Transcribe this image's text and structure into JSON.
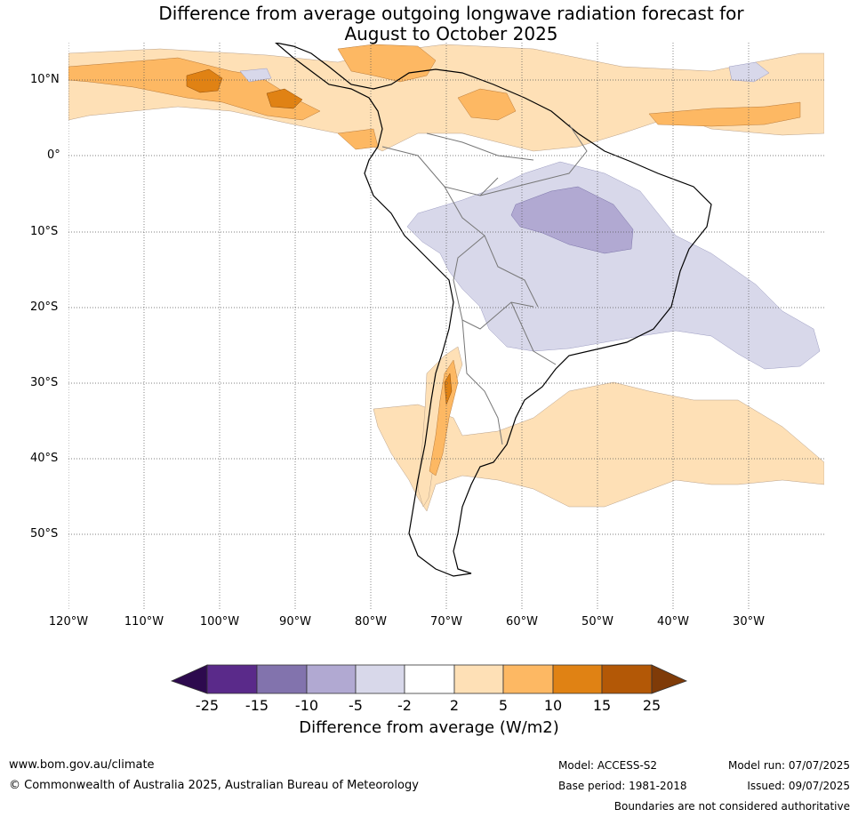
{
  "title": {
    "line1": "Difference from average outgoing longwave radiation forecast for",
    "line2": "August to October 2025"
  },
  "map": {
    "lat_labels": [
      "10°N",
      "0°",
      "10°S",
      "20°S",
      "30°S",
      "40°S",
      "50°S"
    ],
    "lon_labels": [
      "120°W",
      "110°W",
      "100°W",
      "90°W",
      "80°W",
      "70°W",
      "60°W",
      "50°W",
      "40°W",
      "30°W"
    ]
  },
  "colorbar": {
    "ticks": [
      "-25",
      "-15",
      "-10",
      "-5",
      "-2",
      "2",
      "5",
      "10",
      "15",
      "25"
    ],
    "colors": [
      "#2d0a4e",
      "#5a2a8a",
      "#8273ad",
      "#b1a9d2",
      "#d8d8ea",
      "#ffffff",
      "#fee0b6",
      "#fdb863",
      "#e08214",
      "#b35806",
      "#7f3b08"
    ],
    "label": "Difference from average (W/m2)"
  },
  "footer": {
    "website": "www.bom.gov.au/climate",
    "copyright": "© Commonwealth of Australia 2025, Australian Bureau of Meteorology",
    "model": "Model: ACCESS-S2",
    "base_period": "Base period: 1981-2018",
    "model_run": "Model run: 07/07/2025",
    "issued": "Issued: 09/07/2025",
    "disclaimer": "Boundaries are not considered authoritative"
  }
}
